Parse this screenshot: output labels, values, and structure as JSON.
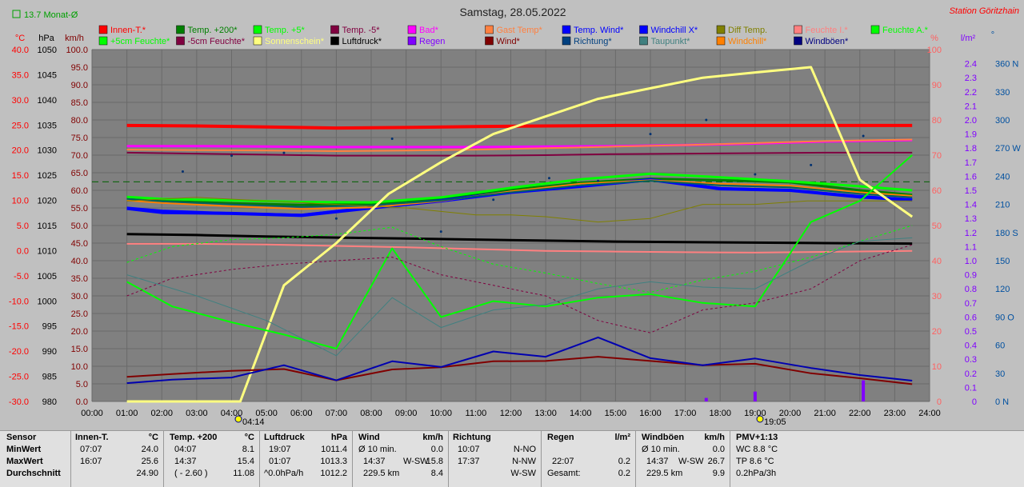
{
  "chart_data": {
    "type": "line",
    "title": "Samstag, 28.05.2022",
    "station": "Station Göritzhain",
    "month_avg": "13.7 Monat-Ø",
    "x_ticks": [
      "00:00",
      "01:00",
      "02:00",
      "03:00",
      "04:00",
      "05:00",
      "06:00",
      "07:00",
      "08:00",
      "09:00",
      "10:00",
      "11:00",
      "12:00",
      "13:00",
      "14:00",
      "15:00",
      "16:00",
      "17:00",
      "18:00",
      "19:00",
      "20:00",
      "21:00",
      "22:00",
      "23:00",
      "24:00"
    ],
    "x_range": [
      0,
      24
    ],
    "sunrise": "04:14",
    "sunset": "19:05",
    "axes": {
      "temp": {
        "unit": "°C",
        "range": [
          -30,
          40
        ],
        "ticks": [
          "40.0",
          "35.0",
          "30.0",
          "25.0",
          "20.0",
          "15.0",
          "10.0",
          "5.0",
          "0.0",
          "-5.0",
          "-10.0",
          "-15.0",
          "-20.0",
          "-25.0",
          "-30.0"
        ],
        "color": "#ff0000"
      },
      "pressure": {
        "unit": "hPa",
        "range": [
          980,
          1050
        ],
        "ticks": [
          "1050",
          "1045",
          "1040",
          "1035",
          "1030",
          "1025",
          "1020",
          "1015",
          "1010",
          "1005",
          "1000",
          "995",
          "990",
          "985",
          "980"
        ],
        "color": "#000000"
      },
      "wind": {
        "unit": "km/h",
        "range": [
          0,
          100
        ],
        "ticks": [
          "100.0",
          "95.0",
          "90.0",
          "85.0",
          "80.0",
          "75.0",
          "70.0",
          "65.0",
          "60.0",
          "55.0",
          "50.0",
          "45.0",
          "40.0",
          "35.0",
          "30.0",
          "25.0",
          "20.0",
          "15.0",
          "10.0",
          "5.0",
          "0.0"
        ],
        "color": "#800000"
      },
      "humidity": {
        "unit": "%",
        "range": [
          0,
          100
        ],
        "ticks": [
          "100",
          "90",
          "80",
          "70",
          "60",
          "50",
          "40",
          "30",
          "20",
          "10",
          "0"
        ],
        "color": "#ff6060"
      },
      "rain": {
        "unit": "l/m²",
        "range": [
          0,
          2.5
        ],
        "ticks": [
          "2.4",
          "2.3",
          "2.2",
          "2.1",
          "2.0",
          "1.9",
          "1.8",
          "1.7",
          "1.6",
          "1.5",
          "1.4",
          "1.3",
          "1.2",
          "1.1",
          "1.0",
          "0.9",
          "0.8",
          "0.7",
          "0.6",
          "0.5",
          "0.4",
          "0.3",
          "0.2",
          "0.1",
          "0"
        ],
        "color": "#8000ff"
      },
      "direction": {
        "unit": "°",
        "range": [
          0,
          375
        ],
        "ticks": [
          "360 N",
          "330",
          "300",
          "270 W",
          "240",
          "210",
          "180 S",
          "150",
          "120",
          "90 O",
          "60",
          "30",
          "0 N"
        ],
        "color": "#0050a0"
      }
    },
    "legend": [
      {
        "name": "Innen-T.*",
        "color": "#ff0000"
      },
      {
        "name": "Temp. +200*",
        "color": "#008000"
      },
      {
        "name": "Temp. +5*",
        "color": "#00ff00"
      },
      {
        "name": "Temp. -5*",
        "color": "#800040"
      },
      {
        "name": "Bad*",
        "color": "#ff00ff"
      },
      {
        "name": "Gast Temp*",
        "color": "#ff8040"
      },
      {
        "name": "Temp. Wind*",
        "color": "#0000ff"
      },
      {
        "name": "Windchill X*",
        "color": "#0000ff"
      },
      {
        "name": "Diff Temp.",
        "color": "#808000"
      },
      {
        "name": "Feuchte I.*",
        "color": "#ff8080"
      },
      {
        "name": "Feuchte A.*",
        "color": "#00ff00"
      },
      {
        "name": "+5cm Feuchte*",
        "color": "#00ff00"
      },
      {
        "name": "-5cm Feuchte*",
        "color": "#800040"
      },
      {
        "name": "Sonnenschein*",
        "color": "#ffff80"
      },
      {
        "name": "Luftdruck*",
        "color": "#000000"
      },
      {
        "name": "Regen",
        "color": "#8000ff"
      },
      {
        "name": "Wind*",
        "color": "#800000"
      },
      {
        "name": "Richtung*",
        "color": "#004080"
      },
      {
        "name": "Taupunkt*",
        "color": "#408080"
      },
      {
        "name": "Windchill*",
        "color": "#ff8000"
      },
      {
        "name": "Windböen*",
        "color": "#000080"
      }
    ],
    "series": [
      {
        "name": "Innen-T.*",
        "axis": "temp",
        "color": "#ff0000",
        "width": 4,
        "x": [
          1,
          3,
          5,
          7,
          9,
          11,
          13,
          15,
          17,
          19,
          21,
          23.5
        ],
        "y": [
          24.9,
          24.8,
          24.6,
          24.4,
          24.5,
          24.7,
          24.8,
          24.9,
          24.9,
          24.9,
          24.9,
          24.9
        ]
      },
      {
        "name": "Bad*",
        "axis": "temp",
        "color": "#ff00ff",
        "width": 3,
        "x": [
          1,
          3,
          5,
          7,
          9,
          11,
          13,
          15,
          17,
          19,
          21,
          23.5
        ],
        "y": [
          20.8,
          20.8,
          20.7,
          20.6,
          20.6,
          20.6,
          20.7,
          20.8,
          21.0,
          21.3,
          21.7,
          22.0
        ]
      },
      {
        "name": "Gast Temp*",
        "axis": "temp",
        "color": "#ff8040",
        "width": 2,
        "x": [
          1,
          3,
          5,
          7,
          9,
          11,
          13,
          15,
          17,
          19,
          21,
          23.5
        ],
        "y": [
          20.1,
          20.0,
          19.9,
          19.8,
          19.9,
          20.1,
          20.4,
          20.7,
          21.0,
          21.4,
          21.8,
          22.1
        ]
      },
      {
        "name": "Temp. -5*",
        "axis": "temp",
        "color": "#800040",
        "width": 2,
        "x": [
          1,
          3,
          5,
          7,
          9,
          11,
          13,
          15,
          17,
          19,
          21,
          23.5
        ],
        "y": [
          19.5,
          19.3,
          19.1,
          18.9,
          18.9,
          18.9,
          19.0,
          19.2,
          19.3,
          19.4,
          19.5,
          19.5
        ]
      },
      {
        "name": "Feuchte I.*",
        "axis": "humidity",
        "color": "#ff8080",
        "width": 2,
        "x": [
          1,
          3,
          5,
          7,
          9,
          11,
          13,
          15,
          17,
          19,
          21,
          23.5
        ],
        "y": [
          44.8,
          44.8,
          44.6,
          44.2,
          43.8,
          43.3,
          42.8,
          42.6,
          42.4,
          42.3,
          42.5,
          42.8
        ]
      },
      {
        "name": "Luftdruck*",
        "axis": "pressure",
        "color": "#000000",
        "width": 3,
        "x": [
          1,
          3,
          5,
          7,
          9,
          11,
          13,
          15,
          17,
          19,
          21,
          23.5
        ],
        "y": [
          1013.3,
          1013.1,
          1012.8,
          1012.6,
          1012.4,
          1012.2,
          1012.0,
          1011.8,
          1011.7,
          1011.6,
          1011.5,
          1011.4
        ]
      },
      {
        "name": "Temp. +200*",
        "axis": "temp",
        "color": "#008000",
        "width": 3,
        "x": [
          1,
          2,
          4,
          6,
          8,
          10,
          12,
          14,
          16,
          18,
          20,
          22,
          23.5
        ],
        "y": [
          10.6,
          9.9,
          9.4,
          9.1,
          9.3,
          10.2,
          12.1,
          13.5,
          14.3,
          14.0,
          13.6,
          12.0,
          11.1
        ]
      },
      {
        "name": "Temp. +5*",
        "axis": "temp",
        "color": "#00ff00",
        "width": 3,
        "x": [
          1,
          2,
          4,
          6,
          8,
          10,
          12,
          14,
          16,
          18,
          20,
          22,
          23.5
        ],
        "y": [
          10.7,
          10.3,
          10.0,
          9.7,
          9.6,
          10.6,
          12.5,
          14.2,
          15.3,
          14.6,
          13.8,
          12.8,
          12.0
        ]
      },
      {
        "name": "Temp. Wind*",
        "axis": "temp",
        "color": "#0000ff",
        "width": 4,
        "x": [
          1,
          2,
          4,
          6,
          8,
          10,
          12,
          14,
          16,
          18,
          20,
          22,
          23.5
        ],
        "y": [
          8.4,
          7.6,
          7.4,
          7.0,
          8.5,
          9.9,
          11.6,
          12.8,
          14.1,
          12.3,
          12.0,
          10.7,
          10.1
        ]
      },
      {
        "name": "Windchill X*",
        "axis": "temp",
        "color": "#0000ff",
        "width": 2,
        "x": [
          1,
          2,
          4,
          6,
          8,
          10,
          12,
          14,
          16,
          18,
          20,
          22,
          23.5
        ],
        "y": [
          8.6,
          8.0,
          7.5,
          7.2,
          8.7,
          10.1,
          11.8,
          13.0,
          14.2,
          12.5,
          12.1,
          10.9,
          10.2
        ]
      },
      {
        "name": "Windchill*",
        "axis": "temp",
        "color": "#ff8000",
        "width": 2,
        "x": [
          1,
          2,
          4,
          6,
          8,
          10,
          12,
          14,
          16,
          18,
          20,
          22,
          23.5
        ],
        "y": [
          10.0,
          9.5,
          8.8,
          8.3,
          8.6,
          9.9,
          11.8,
          13.3,
          14.0,
          13.3,
          12.9,
          11.6,
          10.9
        ]
      },
      {
        "name": "Taupunkt*",
        "axis": "temp",
        "color": "#006060",
        "width": 2,
        "x": [
          1,
          2,
          4,
          6,
          8,
          10,
          12,
          14,
          16,
          18,
          20,
          22,
          23.5
        ],
        "y": [
          10.3,
          9.8,
          9.2,
          8.7,
          9.0,
          10.0,
          11.6,
          13.0,
          13.9,
          13.0,
          12.6,
          11.3,
          10.6
        ]
      },
      {
        "name": "Diff Temp.",
        "axis": "wind",
        "color": "#808000",
        "width": 1,
        "x": [
          1,
          3,
          5,
          7,
          9,
          10,
          11,
          12,
          13,
          14.5,
          16,
          17.5,
          19,
          20.5,
          22,
          23.5
        ],
        "y": [
          57,
          58,
          57,
          56,
          55,
          54,
          53,
          53,
          52.5,
          51,
          52,
          56,
          56,
          57,
          57,
          57
        ]
      },
      {
        "name": "Sonnenschein*",
        "axis": "wind",
        "color": "#ffff80",
        "width": 3,
        "x": [
          1,
          4.25,
          5.5,
          7,
          8.5,
          10,
          11.5,
          13,
          14.5,
          16,
          17.5,
          19,
          20.6,
          22,
          23.5
        ],
        "y": [
          0,
          0,
          33,
          45,
          59,
          68,
          76,
          81,
          86,
          89,
          92,
          93.5,
          95,
          63,
          52.5
        ]
      },
      {
        "name": "Feuchte A.*",
        "axis": "humidity",
        "color": "#00ff00",
        "width": 2,
        "x": [
          1,
          2.3,
          4,
          5.5,
          7,
          8.6,
          10,
          11.5,
          13,
          14.5,
          16,
          17.5,
          19,
          20.6,
          22,
          23.5
        ],
        "y": [
          34,
          27,
          22.5,
          19,
          15,
          43.5,
          24,
          28.5,
          27,
          29.5,
          30.5,
          28,
          27,
          51,
          57,
          70
        ]
      },
      {
        "name": "+5cm Feuchte*",
        "axis": "humidity",
        "color": "#00ff00",
        "width": 1,
        "dash": "3,3",
        "x": [
          1,
          2.3,
          4,
          5.5,
          7,
          8.6,
          10,
          11.5,
          13,
          14.5,
          16,
          17.5,
          19,
          20.6,
          22,
          23.5
        ],
        "y": [
          39.5,
          44,
          46,
          46.5,
          47.5,
          49.5,
          44,
          39,
          36.5,
          33.5,
          31,
          34.5,
          37,
          41,
          45.5,
          50
        ]
      },
      {
        "name": "-5cm Feuchte*",
        "axis": "humidity",
        "color": "#800040",
        "width": 1,
        "dash": "3,3",
        "x": [
          1,
          2.3,
          4,
          5.5,
          7,
          8.6,
          10,
          11.5,
          13,
          14.5,
          16,
          17.5,
          19,
          20.6,
          22,
          23.5
        ],
        "y": [
          30,
          35,
          37.5,
          39,
          40,
          41,
          36,
          33,
          30,
          23,
          19.5,
          26,
          28,
          32,
          40,
          44.5
        ]
      },
      {
        "name": "Richtung*",
        "axis": "humidity",
        "color": "#408080",
        "width": 1,
        "x": [
          1,
          3,
          5,
          7,
          8.6,
          10,
          11.5,
          13,
          14.5,
          16,
          17.5,
          19,
          20.6,
          22,
          23.5
        ],
        "y": [
          36,
          30,
          23,
          13,
          29.5,
          21,
          26,
          27.5,
          32,
          34,
          32.5,
          32,
          40,
          45.5,
          46.5
        ]
      },
      {
        "name": "Wind*",
        "axis": "wind",
        "color": "#800000",
        "width": 2,
        "x": [
          1,
          2.3,
          4,
          5.5,
          7,
          8.6,
          10,
          11.5,
          13,
          14.5,
          16,
          17.5,
          19,
          20.6,
          22,
          23.5
        ],
        "y": [
          7,
          7.8,
          8.7,
          9.2,
          6,
          9.1,
          9.7,
          11.4,
          11.5,
          12.7,
          11.5,
          10.3,
          10.7,
          8,
          6.6,
          4.9
        ]
      },
      {
        "name": "Windböen*",
        "axis": "wind",
        "color": "#0000b0",
        "width": 2,
        "x": [
          1,
          2.3,
          4,
          5.5,
          7,
          8.6,
          10,
          11.5,
          13,
          14.5,
          16,
          17.5,
          19,
          20.6,
          22,
          23.5
        ],
        "y": [
          5.2,
          6.2,
          6.8,
          10.3,
          6,
          11.4,
          9.8,
          14.2,
          12.7,
          18.2,
          12.3,
          10.3,
          12.2,
          9.5,
          7.5,
          5.9
        ]
      }
    ],
    "rain_bars": {
      "axis": "rain",
      "x": [
        17.6,
        19.0,
        22.1
      ],
      "y": [
        0.025,
        0.07,
        0.15
      ]
    },
    "direction_dots": {
      "axis": "direction",
      "x": [
        2.6,
        4.0,
        5.5,
        7.0,
        8.6,
        10.0,
        11.5,
        13.1,
        14.5,
        16.0,
        17.6,
        19.0,
        20.6,
        22.1
      ],
      "y": [
        245,
        262,
        265,
        195,
        280,
        181,
        215,
        238,
        235,
        285,
        300,
        242,
        252,
        283
      ]
    },
    "month_avg_value": 13.7
  },
  "stats": {
    "row_labels": {
      "header": "Sensor",
      "min": "MinWert",
      "max": "MaxWert",
      "avg": "Durchschnitt"
    },
    "innen": {
      "title": "Innen-T.",
      "unit": "°C",
      "min_time": "07:07",
      "min_val": "24.0",
      "max_time": "16:07",
      "max_val": "25.6",
      "avg": "24.90"
    },
    "temp200": {
      "title": "Temp. +200",
      "unit": "°C",
      "min_time": "04:07",
      "min_val": "8.1",
      "max_time": "14:37",
      "max_val": "15.4",
      "avg_note": "( - 2.60 )",
      "avg": "11.08"
    },
    "luftdruck": {
      "title": "Luftdruck",
      "unit": "hPa",
      "min_time": "19:07",
      "min_val": "1011.4",
      "max_time": "01:07",
      "max_val": "1013.3",
      "avg_note": "^0.0hPa/h",
      "avg": "1012.2"
    },
    "wind": {
      "title": "Wind",
      "unit": "km/h",
      "min_label": "Ø 10 min.",
      "min_val": "0.0",
      "max_time": "14:37",
      "max_dir": "W-SW",
      "max_val": "15.8",
      "avg_note": "229.5 km",
      "avg": "8.4"
    },
    "richtung": {
      "title": "Richtung",
      "min_time": "10:07",
      "min_val": "N-NO",
      "max_time": "17:37",
      "max_val": "N-NW",
      "avg": "W-SW"
    },
    "regen": {
      "title": "Regen",
      "unit": "l/m²",
      "max_time": "22:07",
      "max_val": "0.2",
      "avg_label": "Gesamt:",
      "avg": "0.2"
    },
    "boeen": {
      "title": "Windböen",
      "unit": "km/h",
      "min_label": "Ø 10 min.",
      "min_val": "0.0",
      "max_time": "14:37",
      "max_dir": "W-SW",
      "max_val": "26.7",
      "avg_note": "229.5 km",
      "avg": "9.9"
    },
    "pmv": {
      "title": "PMV+1:13",
      "min_val": "WC 8.8 °C",
      "max_val": "TP 8.6 °C",
      "avg": "0.2hPa/3h"
    }
  }
}
